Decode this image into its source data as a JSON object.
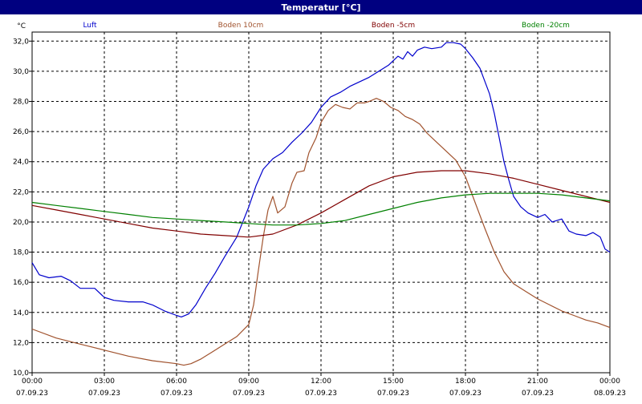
{
  "window": {
    "title": "Temperatur [°C]"
  },
  "chart_data": {
    "type": "line",
    "title": "Temperatur [°C]",
    "ylabel": "°C",
    "xlabel": "",
    "ylim": [
      10,
      32.6
    ],
    "yticks": [
      10,
      12,
      14,
      16,
      18,
      20,
      22,
      24,
      26,
      28,
      30,
      32
    ],
    "ytick_labels": [
      "10,0",
      "12,0",
      "14,0",
      "16,0",
      "18,0",
      "20,0",
      "22,0",
      "24,0",
      "26,0",
      "28,0",
      "30,0",
      "32,0"
    ],
    "xlim": [
      0,
      24
    ],
    "xticks": [
      {
        "x": 0,
        "time": "00:00",
        "date": "07.09.23"
      },
      {
        "x": 3,
        "time": "03:00",
        "date": "07.09.23"
      },
      {
        "x": 6,
        "time": "06:00",
        "date": "07.09.23"
      },
      {
        "x": 9,
        "time": "09:00",
        "date": "07.09.23"
      },
      {
        "x": 12,
        "time": "12:00",
        "date": "07.09.23"
      },
      {
        "x": 15,
        "time": "15:00",
        "date": "07.09.23"
      },
      {
        "x": 18,
        "time": "18:00",
        "date": "07.09.23"
      },
      {
        "x": 21,
        "time": "21:00",
        "date": "07.09.23"
      },
      {
        "x": 24,
        "time": "00:00",
        "date": "08.09.23"
      }
    ],
    "grid": true,
    "legend_position": "top",
    "series": [
      {
        "name": "Luft",
        "color": "#0000cc",
        "points": [
          [
            0,
            17.3
          ],
          [
            0.3,
            16.5
          ],
          [
            0.7,
            16.3
          ],
          [
            1.2,
            16.4
          ],
          [
            1.6,
            16.1
          ],
          [
            2.0,
            15.6
          ],
          [
            2.6,
            15.6
          ],
          [
            3.0,
            15.0
          ],
          [
            3.4,
            14.8
          ],
          [
            4.0,
            14.7
          ],
          [
            4.6,
            14.7
          ],
          [
            5.0,
            14.5
          ],
          [
            5.5,
            14.1
          ],
          [
            6.0,
            13.8
          ],
          [
            6.2,
            13.7
          ],
          [
            6.5,
            13.9
          ],
          [
            6.8,
            14.5
          ],
          [
            7.2,
            15.6
          ],
          [
            7.6,
            16.6
          ],
          [
            8.0,
            17.7
          ],
          [
            8.5,
            19.0
          ],
          [
            9.0,
            21.0
          ],
          [
            9.3,
            22.4
          ],
          [
            9.6,
            23.5
          ],
          [
            10.0,
            24.2
          ],
          [
            10.4,
            24.6
          ],
          [
            10.8,
            25.3
          ],
          [
            11.2,
            25.9
          ],
          [
            11.6,
            26.6
          ],
          [
            12.0,
            27.6
          ],
          [
            12.4,
            28.3
          ],
          [
            12.8,
            28.6
          ],
          [
            13.2,
            29.0
          ],
          [
            13.6,
            29.3
          ],
          [
            14.0,
            29.6
          ],
          [
            14.4,
            30.0
          ],
          [
            14.8,
            30.4
          ],
          [
            15.2,
            31.0
          ],
          [
            15.4,
            30.8
          ],
          [
            15.6,
            31.3
          ],
          [
            15.8,
            31.0
          ],
          [
            16.0,
            31.4
          ],
          [
            16.3,
            31.6
          ],
          [
            16.6,
            31.5
          ],
          [
            17.0,
            31.6
          ],
          [
            17.2,
            31.9
          ],
          [
            17.5,
            31.9
          ],
          [
            17.8,
            31.8
          ],
          [
            18.0,
            31.5
          ],
          [
            18.3,
            30.9
          ],
          [
            18.6,
            30.2
          ],
          [
            19.0,
            28.5
          ],
          [
            19.2,
            27.2
          ],
          [
            19.4,
            25.6
          ],
          [
            19.6,
            24.0
          ],
          [
            19.8,
            22.8
          ],
          [
            20.0,
            21.7
          ],
          [
            20.3,
            21.0
          ],
          [
            20.6,
            20.6
          ],
          [
            21.0,
            20.3
          ],
          [
            21.3,
            20.5
          ],
          [
            21.6,
            20.0
          ],
          [
            22.0,
            20.2
          ],
          [
            22.3,
            19.4
          ],
          [
            22.6,
            19.2
          ],
          [
            23.0,
            19.1
          ],
          [
            23.3,
            19.3
          ],
          [
            23.6,
            19.0
          ],
          [
            23.8,
            18.2
          ],
          [
            24.0,
            18.0
          ]
        ]
      },
      {
        "name": "Boden 10cm",
        "color": "#a0522d",
        "points": [
          [
            0,
            12.9
          ],
          [
            1,
            12.3
          ],
          [
            2,
            11.9
          ],
          [
            3,
            11.5
          ],
          [
            4,
            11.1
          ],
          [
            5,
            10.8
          ],
          [
            6,
            10.6
          ],
          [
            6.3,
            10.5
          ],
          [
            6.6,
            10.6
          ],
          [
            7,
            10.9
          ],
          [
            7.5,
            11.4
          ],
          [
            8,
            11.9
          ],
          [
            8.5,
            12.4
          ],
          [
            9.0,
            13.2
          ],
          [
            9.2,
            14.5
          ],
          [
            9.4,
            16.8
          ],
          [
            9.6,
            19.0
          ],
          [
            9.8,
            20.8
          ],
          [
            10.0,
            21.7
          ],
          [
            10.2,
            20.6
          ],
          [
            10.5,
            21.0
          ],
          [
            10.8,
            22.6
          ],
          [
            11.0,
            23.3
          ],
          [
            11.3,
            23.4
          ],
          [
            11.5,
            24.6
          ],
          [
            11.8,
            25.6
          ],
          [
            12.0,
            26.6
          ],
          [
            12.3,
            27.4
          ],
          [
            12.6,
            27.8
          ],
          [
            12.9,
            27.6
          ],
          [
            13.2,
            27.5
          ],
          [
            13.5,
            27.9
          ],
          [
            13.8,
            27.9
          ],
          [
            14.0,
            28.0
          ],
          [
            14.3,
            28.2
          ],
          [
            14.6,
            28.0
          ],
          [
            14.9,
            27.6
          ],
          [
            15.2,
            27.4
          ],
          [
            15.5,
            27.0
          ],
          [
            15.8,
            26.8
          ],
          [
            16.1,
            26.5
          ],
          [
            16.4,
            25.9
          ],
          [
            16.8,
            25.3
          ],
          [
            17.2,
            24.7
          ],
          [
            17.6,
            24.1
          ],
          [
            18.0,
            23.0
          ],
          [
            18.4,
            21.3
          ],
          [
            18.8,
            19.6
          ],
          [
            19.2,
            18.0
          ],
          [
            19.6,
            16.7
          ],
          [
            20.0,
            15.9
          ],
          [
            20.5,
            15.4
          ],
          [
            21.0,
            14.9
          ],
          [
            21.5,
            14.5
          ],
          [
            22.0,
            14.1
          ],
          [
            22.5,
            13.8
          ],
          [
            23.0,
            13.5
          ],
          [
            23.5,
            13.3
          ],
          [
            24.0,
            13.0
          ]
        ]
      },
      {
        "name": "Boden -5cm",
        "color": "#800000",
        "points": [
          [
            0,
            21.1
          ],
          [
            1,
            20.8
          ],
          [
            2,
            20.5
          ],
          [
            3,
            20.2
          ],
          [
            4,
            19.9
          ],
          [
            5,
            19.6
          ],
          [
            6,
            19.4
          ],
          [
            7,
            19.2
          ],
          [
            8,
            19.1
          ],
          [
            9,
            19.0
          ],
          [
            10,
            19.2
          ],
          [
            11,
            19.8
          ],
          [
            12,
            20.6
          ],
          [
            13,
            21.5
          ],
          [
            14,
            22.4
          ],
          [
            15,
            23.0
          ],
          [
            16,
            23.3
          ],
          [
            17,
            23.4
          ],
          [
            18,
            23.4
          ],
          [
            19,
            23.2
          ],
          [
            20,
            22.9
          ],
          [
            21,
            22.5
          ],
          [
            22,
            22.1
          ],
          [
            23,
            21.7
          ],
          [
            24,
            21.3
          ]
        ]
      },
      {
        "name": "Boden -20cm",
        "color": "#008000",
        "points": [
          [
            0,
            21.3
          ],
          [
            1,
            21.1
          ],
          [
            2,
            20.9
          ],
          [
            3,
            20.7
          ],
          [
            4,
            20.5
          ],
          [
            5,
            20.3
          ],
          [
            6,
            20.2
          ],
          [
            7,
            20.1
          ],
          [
            8,
            20.0
          ],
          [
            9,
            19.9
          ],
          [
            10,
            19.8
          ],
          [
            11,
            19.8
          ],
          [
            12,
            19.9
          ],
          [
            13,
            20.1
          ],
          [
            14,
            20.5
          ],
          [
            15,
            20.9
          ],
          [
            16,
            21.3
          ],
          [
            17,
            21.6
          ],
          [
            18,
            21.8
          ],
          [
            19,
            21.9
          ],
          [
            20,
            21.9
          ],
          [
            21,
            21.9
          ],
          [
            22,
            21.8
          ],
          [
            23,
            21.6
          ],
          [
            24,
            21.4
          ]
        ]
      }
    ]
  }
}
